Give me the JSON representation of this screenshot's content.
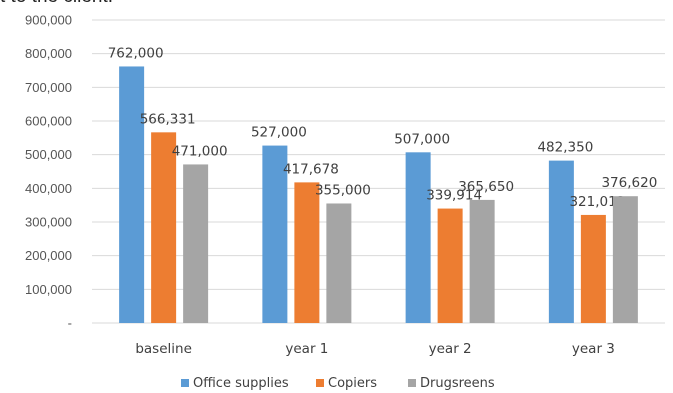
{
  "header": {
    "partial_text": "t to the client."
  },
  "chart_data": {
    "type": "bar",
    "categories": [
      "baseline",
      "year 1",
      "year 2",
      "year 3"
    ],
    "series": [
      {
        "name": "Office supplies",
        "color": "#5b9bd5",
        "values": [
          762000,
          527000,
          507000,
          482350
        ],
        "labels": [
          "762,000",
          "527,000",
          "507,000",
          "482,350"
        ]
      },
      {
        "name": "Copiers",
        "color": "#ed7d31",
        "values": [
          566331,
          417678,
          339914,
          321012
        ],
        "labels": [
          "566,331",
          "417,678",
          "339,914",
          "321,012"
        ]
      },
      {
        "name": "Drugsreens",
        "color": "#a5a5a5",
        "values": [
          471000,
          355000,
          365650,
          376620
        ],
        "labels": [
          "471,000",
          "355,000",
          "365,650",
          "376,620"
        ]
      }
    ],
    "ylim": [
      0,
      900000
    ],
    "yticks": [
      0,
      100000,
      200000,
      300000,
      400000,
      500000,
      600000,
      700000,
      800000,
      900000
    ],
    "ytick_labels": [
      "-",
      "100,000",
      "200,000",
      "300,000",
      "400,000",
      "500,000",
      "600,000",
      "700,000",
      "800,000",
      "900,000"
    ],
    "legend": "bottom",
    "grid": true
  }
}
